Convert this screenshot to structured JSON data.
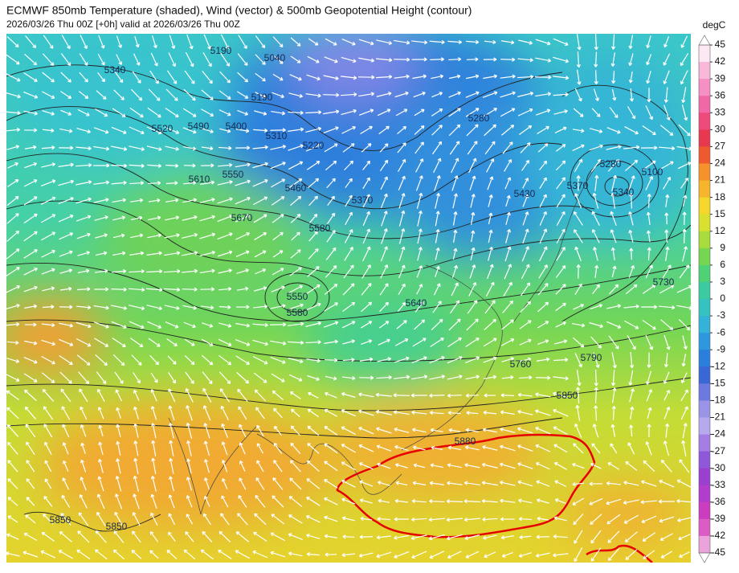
{
  "header": {
    "title": "ECMWF 850mb Temperature (shaded), Wind (vector) & 500mb Geopotential Height (contour)",
    "subtitle": "2026/03/26 Thu 00Z [+0h] valid at 2026/03/26 Thu 00Z"
  },
  "colorbar": {
    "unit": "degC",
    "ticks": [
      45,
      42,
      39,
      36,
      33,
      30,
      27,
      24,
      21,
      18,
      15,
      12,
      9,
      6,
      3,
      0,
      -3,
      -6,
      -9,
      -12,
      -15,
      -18,
      -21,
      -24,
      -27,
      -30,
      -33,
      -36,
      -39,
      -42,
      -45
    ]
  },
  "contour_labels": [
    "5340",
    "5040",
    "5190",
    "5190",
    "5520",
    "5490",
    "5400",
    "5310",
    "5220",
    "5280",
    "5610",
    "5550",
    "5460",
    "5370",
    "5430",
    "5370",
    "5280",
    "5340",
    "5100",
    "5670",
    "5580",
    "5550",
    "5580",
    "5640",
    "5730",
    "5760",
    "5790",
    "5850",
    "5880",
    "5850",
    "5850"
  ]
}
